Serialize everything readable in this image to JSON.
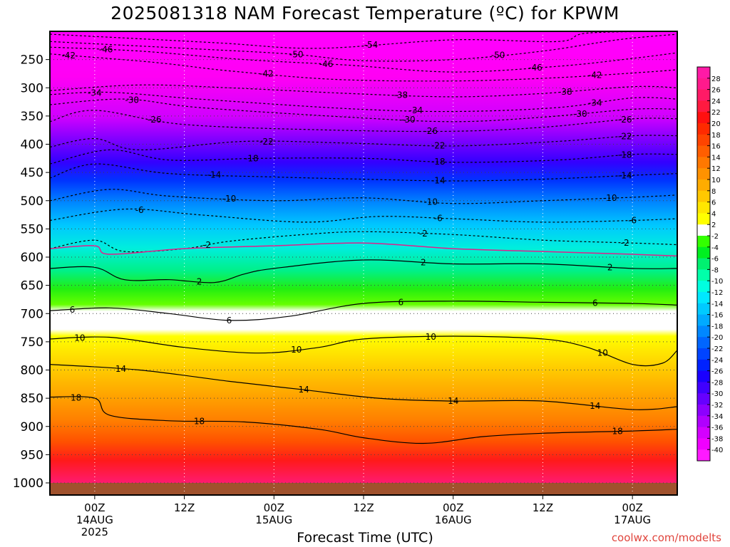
{
  "title": "2025081318 NAM Forecast Temperature (ºC) for KPWM",
  "credit": "coolwx.com/modelts",
  "chart_data": {
    "type": "heatmap",
    "title": "2025081318 NAM Forecast Temperature (ºC) for KPWM",
    "xlabel": "Forecast Time (UTC)",
    "ylabel": "",
    "ylim": [
      1000,
      200
    ],
    "xlim": [
      -6,
      78
    ],
    "y_ticks": [
      250,
      300,
      350,
      400,
      450,
      500,
      550,
      600,
      650,
      700,
      750,
      800,
      850,
      900,
      950,
      1000
    ],
    "x_ticks": [
      {
        "x": 0,
        "lines": [
          "00Z",
          "14AUG",
          "2025"
        ]
      },
      {
        "x": 12,
        "lines": [
          "12Z"
        ]
      },
      {
        "x": 24,
        "lines": [
          "00Z",
          "15AUG"
        ]
      },
      {
        "x": 36,
        "lines": [
          "12Z"
        ]
      },
      {
        "x": 48,
        "lines": [
          "00Z",
          "16AUG"
        ]
      },
      {
        "x": 60,
        "lines": [
          "12Z"
        ]
      },
      {
        "x": 72,
        "lines": [
          "00Z",
          "17AUG"
        ]
      }
    ],
    "grid": true,
    "colorbar": {
      "labels": [
        28,
        26,
        24,
        22,
        20,
        18,
        16,
        14,
        12,
        10,
        8,
        6,
        4,
        2,
        -2,
        -4,
        -6,
        -8,
        -10,
        -12,
        -14,
        -16,
        -18,
        -20,
        -22,
        -24,
        -26,
        -28,
        -30,
        -32,
        -34,
        -36,
        -38,
        -40
      ],
      "colors": [
        "#ff1aa6",
        "#ff1a8c",
        "#ff1a66",
        "#ff1a40",
        "#ff1010",
        "#ff2a00",
        "#ff4400",
        "#ff5e00",
        "#ff7800",
        "#ff9200",
        "#ffac00",
        "#ffc800",
        "#ffe600",
        "#ffff00",
        "#ffffff",
        "#33ff00",
        "#00f020",
        "#00f070",
        "#00ffaa",
        "#00ffe0",
        "#00e8ff",
        "#00caff",
        "#00aaff",
        "#0088ff",
        "#0066ff",
        "#0044ff",
        "#0022ff",
        "#1a00ff",
        "#4000ff",
        "#6600ff",
        "#8c00ff",
        "#b000ff",
        "#d400ff",
        "#f000ff",
        "#ff1aff"
      ]
    },
    "freezing_level_color": "#e0208c",
    "contours": [
      {
        "temp": -54,
        "points": [
          [
            -6,
            205
          ],
          [
            16,
            220
          ],
          [
            30,
            230
          ],
          [
            48,
            215
          ],
          [
            62,
            218
          ],
          [
            66,
            203
          ],
          [
            78,
            200
          ]
        ],
        "labels": [
          {
            "x": 37,
            "text": "54"
          }
        ]
      },
      {
        "temp": -50,
        "points": [
          [
            -6,
            218
          ],
          [
            12,
            230
          ],
          [
            26,
            240
          ],
          [
            36,
            252
          ],
          [
            48,
            250
          ],
          [
            60,
            235
          ],
          [
            70,
            215
          ],
          [
            78,
            205
          ]
        ],
        "labels": [
          {
            "x": 27,
            "text": "50"
          },
          {
            "x": 54,
            "text": "50"
          }
        ]
      },
      {
        "temp": -46,
        "points": [
          [
            -6,
            228
          ],
          [
            6,
            235
          ],
          [
            20,
            250
          ],
          [
            34,
            260
          ],
          [
            48,
            272
          ],
          [
            62,
            262
          ],
          [
            72,
            248
          ],
          [
            78,
            238
          ]
        ],
        "labels": [
          {
            "x": 1.5,
            "text": "46"
          },
          {
            "x": 31,
            "text": "46"
          },
          {
            "x": 59,
            "text": "46"
          }
        ]
      },
      {
        "temp": -42,
        "points": [
          [
            -6,
            240
          ],
          [
            8,
            255
          ],
          [
            18,
            270
          ],
          [
            32,
            285
          ],
          [
            48,
            288
          ],
          [
            62,
            282
          ],
          [
            74,
            272
          ],
          [
            78,
            268
          ]
        ],
        "labels": [
          {
            "x": -3.5,
            "text": "42"
          },
          {
            "x": 23,
            "text": "42"
          },
          {
            "x": 67,
            "text": "42"
          }
        ]
      },
      {
        "temp": -38,
        "points": [
          [
            -6,
            305
          ],
          [
            6,
            295
          ],
          [
            18,
            300
          ],
          [
            34,
            310
          ],
          [
            48,
            316
          ],
          [
            60,
            310
          ],
          [
            72,
            298
          ],
          [
            78,
            300
          ]
        ],
        "labels": [
          {
            "x": 41,
            "text": "38"
          },
          {
            "x": 63,
            "text": "38"
          }
        ]
      },
      {
        "temp": -34,
        "points": [
          [
            -6,
            312
          ],
          [
            2,
            308
          ],
          [
            14,
            320
          ],
          [
            34,
            337
          ],
          [
            48,
            342
          ],
          [
            62,
            335
          ],
          [
            72,
            318
          ],
          [
            78,
            320
          ]
        ],
        "labels": [
          {
            "x": 0,
            "text": "34"
          },
          {
            "x": 43,
            "text": "34"
          },
          {
            "x": 67,
            "text": "34"
          }
        ]
      },
      {
        "temp": -30,
        "points": [
          [
            -6,
            330
          ],
          [
            4,
            320
          ],
          [
            14,
            335
          ],
          [
            34,
            352
          ],
          [
            48,
            360
          ],
          [
            60,
            352
          ],
          [
            72,
            338
          ],
          [
            78,
            338
          ]
        ],
        "labels": [
          {
            "x": 5,
            "text": "30"
          },
          {
            "x": 42,
            "text": "30"
          },
          {
            "x": 65,
            "text": "30"
          }
        ]
      },
      {
        "temp": -26,
        "points": [
          [
            -6,
            360
          ],
          [
            0,
            340
          ],
          [
            12,
            365
          ],
          [
            32,
            375
          ],
          [
            48,
            377
          ],
          [
            60,
            370
          ],
          [
            72,
            355
          ],
          [
            78,
            355
          ]
        ],
        "labels": [
          {
            "x": 8,
            "text": "26"
          },
          {
            "x": 45,
            "text": "26"
          },
          {
            "x": 71,
            "text": "26"
          }
        ]
      },
      {
        "temp": -22,
        "points": [
          [
            -6,
            405
          ],
          [
            0,
            390
          ],
          [
            6,
            410
          ],
          [
            20,
            395
          ],
          [
            34,
            398
          ],
          [
            48,
            403
          ],
          [
            62,
            395
          ],
          [
            72,
            385
          ],
          [
            78,
            385
          ]
        ],
        "labels": [
          {
            "x": 23,
            "text": "22"
          },
          {
            "x": 46,
            "text": "22"
          },
          {
            "x": 71,
            "text": "22"
          }
        ]
      },
      {
        "temp": -18,
        "points": [
          [
            -6,
            435
          ],
          [
            2,
            410
          ],
          [
            10,
            428
          ],
          [
            22,
            425
          ],
          [
            36,
            425
          ],
          [
            48,
            432
          ],
          [
            62,
            428
          ],
          [
            72,
            418
          ],
          [
            78,
            418
          ]
        ],
        "labels": [
          {
            "x": 21,
            "text": "18"
          },
          {
            "x": 46,
            "text": "18"
          },
          {
            "x": 71,
            "text": "18"
          }
        ]
      },
      {
        "temp": -14,
        "points": [
          [
            -6,
            460
          ],
          [
            0,
            435
          ],
          [
            10,
            452
          ],
          [
            24,
            458
          ],
          [
            36,
            462
          ],
          [
            48,
            465
          ],
          [
            60,
            462
          ],
          [
            72,
            455
          ],
          [
            78,
            452
          ]
        ],
        "labels": [
          {
            "x": 16,
            "text": "14"
          },
          {
            "x": 46,
            "text": "14"
          },
          {
            "x": 71,
            "text": "14"
          }
        ]
      },
      {
        "temp": -10,
        "points": [
          [
            -6,
            500
          ],
          [
            2,
            480
          ],
          [
            10,
            492
          ],
          [
            24,
            500
          ],
          [
            36,
            495
          ],
          [
            48,
            505
          ],
          [
            60,
            500
          ],
          [
            72,
            494
          ],
          [
            78,
            490
          ]
        ],
        "labels": [
          {
            "x": 18,
            "text": "10"
          },
          {
            "x": 45,
            "text": "10"
          },
          {
            "x": 69,
            "text": "10"
          }
        ]
      },
      {
        "temp": -6,
        "points": [
          [
            -6,
            535
          ],
          [
            4,
            515
          ],
          [
            14,
            525
          ],
          [
            28,
            538
          ],
          [
            38,
            528
          ],
          [
            48,
            532
          ],
          [
            60,
            538
          ],
          [
            72,
            535
          ],
          [
            78,
            532
          ]
        ],
        "labels": [
          {
            "x": 6,
            "text": "6"
          },
          {
            "x": 46,
            "text": "6"
          },
          {
            "x": 72,
            "text": "6"
          }
        ]
      },
      {
        "temp": -2,
        "points": [
          [
            -6,
            585
          ],
          [
            0,
            570
          ],
          [
            4,
            590
          ],
          [
            12,
            585
          ],
          [
            18,
            572
          ],
          [
            28,
            560
          ],
          [
            36,
            555
          ],
          [
            48,
            560
          ],
          [
            60,
            570
          ],
          [
            72,
            575
          ],
          [
            78,
            578
          ]
        ],
        "labels": [
          {
            "x": 15,
            "text": "2"
          },
          {
            "x": 44,
            "text": "2"
          },
          {
            "x": 71,
            "text": "2"
          }
        ]
      },
      {
        "temp": 0,
        "freezing": true,
        "points": [
          [
            -6,
            585
          ],
          [
            0,
            580
          ],
          [
            2,
            595
          ],
          [
            12,
            585
          ],
          [
            24,
            580
          ],
          [
            36,
            575
          ],
          [
            48,
            585
          ],
          [
            60,
            590
          ],
          [
            72,
            595
          ],
          [
            78,
            598
          ]
        ],
        "labels": []
      },
      {
        "temp": 2,
        "points": [
          [
            -6,
            620
          ],
          [
            0,
            618
          ],
          [
            4,
            640
          ],
          [
            10,
            640
          ],
          [
            16,
            645
          ],
          [
            20,
            630
          ],
          [
            24,
            620
          ],
          [
            36,
            605
          ],
          [
            48,
            612
          ],
          [
            60,
            612
          ],
          [
            72,
            620
          ],
          [
            78,
            620
          ]
        ],
        "labels": [
          {
            "x": 14,
            "text": "2"
          },
          {
            "x": 44,
            "text": "2"
          },
          {
            "x": 69,
            "text": "2"
          }
        ]
      },
      {
        "temp": 6,
        "points": [
          [
            -6,
            695
          ],
          [
            2,
            690
          ],
          [
            10,
            700
          ],
          [
            18,
            712
          ],
          [
            26,
            705
          ],
          [
            36,
            682
          ],
          [
            48,
            678
          ],
          [
            60,
            680
          ],
          [
            72,
            682
          ],
          [
            78,
            685
          ]
        ],
        "labels": [
          {
            "x": -3,
            "text": "6"
          },
          {
            "x": 18,
            "text": "6"
          },
          {
            "x": 41,
            "text": "6"
          },
          {
            "x": 67,
            "text": "6"
          }
        ]
      },
      {
        "temp": 10,
        "points": [
          [
            -6,
            745
          ],
          [
            2,
            742
          ],
          [
            12,
            760
          ],
          [
            22,
            770
          ],
          [
            30,
            760
          ],
          [
            36,
            745
          ],
          [
            48,
            740
          ],
          [
            60,
            745
          ],
          [
            66,
            760
          ],
          [
            72,
            790
          ],
          [
            76,
            788
          ],
          [
            78,
            765
          ]
        ],
        "labels": [
          {
            "x": -2,
            "text": "10"
          },
          {
            "x": 27,
            "text": "10"
          },
          {
            "x": 45,
            "text": "10"
          },
          {
            "x": 68,
            "text": "10"
          }
        ]
      },
      {
        "temp": 14,
        "points": [
          [
            -6,
            790
          ],
          [
            6,
            800
          ],
          [
            18,
            820
          ],
          [
            28,
            835
          ],
          [
            38,
            850
          ],
          [
            48,
            855
          ],
          [
            60,
            855
          ],
          [
            72,
            870
          ],
          [
            78,
            865
          ]
        ],
        "labels": [
          {
            "x": 3.5,
            "text": "14"
          },
          {
            "x": 96,
            "text": ""
          },
          {
            "x": 28,
            "text": "14"
          },
          {
            "x": 48,
            "text": "14"
          },
          {
            "x": 67,
            "text": "14"
          }
        ]
      },
      {
        "temp": 18,
        "points": [
          [
            -6,
            848
          ],
          [
            0,
            850
          ],
          [
            2,
            880
          ],
          [
            10,
            890
          ],
          [
            20,
            892
          ],
          [
            30,
            905
          ],
          [
            36,
            920
          ],
          [
            44,
            930
          ],
          [
            52,
            918
          ],
          [
            60,
            912
          ],
          [
            72,
            908
          ],
          [
            78,
            905
          ]
        ],
        "labels": [
          {
            "x": -2.5,
            "text": "18"
          },
          {
            "x": 14,
            "text": "18"
          },
          {
            "x": 70,
            "text": "18"
          }
        ]
      }
    ]
  }
}
